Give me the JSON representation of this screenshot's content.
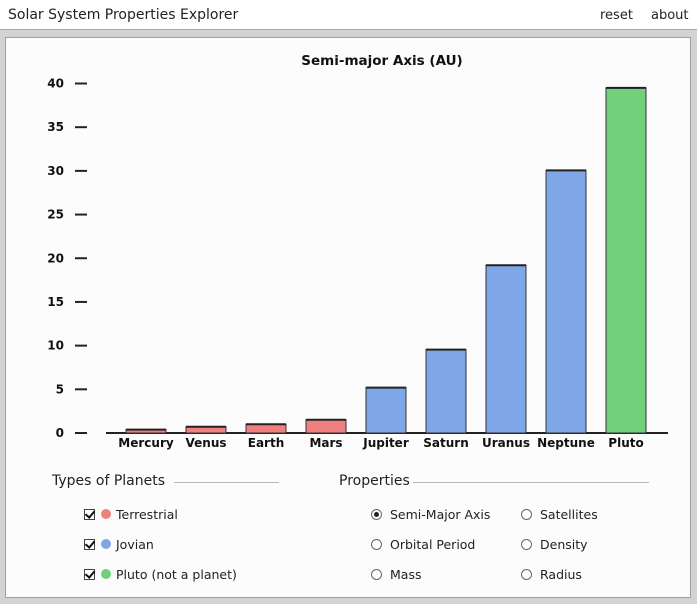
{
  "app": {
    "title": "Solar System Properties Explorer",
    "reset_label": "reset",
    "about_label": "about"
  },
  "chart_data": {
    "type": "bar",
    "title": "Semi-major Axis (AU)",
    "categories": [
      "Mercury",
      "Venus",
      "Earth",
      "Mars",
      "Jupiter",
      "Saturn",
      "Uranus",
      "Neptune",
      "Pluto"
    ],
    "values": [
      0.39,
      0.72,
      1.0,
      1.52,
      5.2,
      9.54,
      19.2,
      30.06,
      39.5
    ],
    "groups": [
      "terrestrial",
      "terrestrial",
      "terrestrial",
      "terrestrial",
      "jovian",
      "jovian",
      "jovian",
      "jovian",
      "pluto"
    ],
    "ylim": [
      0,
      40
    ],
    "yticks": [
      0,
      5,
      10,
      15,
      20,
      25,
      30,
      35,
      40
    ],
    "xlabel": "",
    "ylabel": ""
  },
  "colors": {
    "terrestrial": "#f08080",
    "jovian": "#7fa6e6",
    "pluto": "#72cf7a"
  },
  "types": {
    "title": "Types of Planets",
    "items": [
      {
        "label": "Terrestrial",
        "checked": true
      },
      {
        "label": "Jovian",
        "checked": true
      },
      {
        "label": "Pluto (not a planet)",
        "checked": true
      }
    ]
  },
  "properties": {
    "title": "Properties",
    "items": [
      {
        "label": "Semi-Major Axis",
        "selected": true
      },
      {
        "label": "Satellites",
        "selected": false
      },
      {
        "label": "Orbital Period",
        "selected": false
      },
      {
        "label": "Density",
        "selected": false
      },
      {
        "label": "Mass",
        "selected": false
      },
      {
        "label": "Radius",
        "selected": false
      }
    ]
  }
}
